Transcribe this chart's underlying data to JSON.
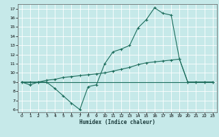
{
  "title": "",
  "xlabel": "Humidex (Indice chaleur)",
  "xlim": [
    -0.5,
    23.5
  ],
  "ylim": [
    5.7,
    17.5
  ],
  "yticks": [
    6,
    7,
    8,
    9,
    10,
    11,
    12,
    13,
    14,
    15,
    16,
    17
  ],
  "xticks": [
    0,
    1,
    2,
    3,
    4,
    5,
    6,
    7,
    8,
    9,
    10,
    11,
    12,
    13,
    14,
    15,
    16,
    17,
    18,
    19,
    20,
    21,
    22,
    23
  ],
  "bg_color": "#c6e9e9",
  "line_color": "#1a6b5a",
  "grid_color": "#ffffff",
  "line1_y": [
    9.0,
    8.7,
    9.0,
    9.0,
    8.3,
    7.5,
    6.7,
    6.0,
    8.5,
    8.7,
    11.0,
    12.3,
    12.6,
    13.0,
    14.9,
    15.8,
    17.1,
    16.5,
    16.3,
    11.5,
    9.0,
    9.0,
    9.0,
    9.0
  ],
  "line2_y": [
    9.0,
    9.0,
    9.0,
    9.0,
    9.0,
    9.0,
    9.0,
    9.0,
    9.0,
    9.0,
    9.0,
    9.0,
    9.0,
    9.0,
    9.0,
    9.0,
    9.0,
    9.0,
    9.0,
    9.0,
    9.0,
    9.0,
    9.0,
    9.0
  ],
  "line3_y": [
    9.0,
    9.0,
    9.0,
    9.2,
    9.3,
    9.5,
    9.6,
    9.7,
    9.8,
    9.9,
    10.0,
    10.2,
    10.4,
    10.6,
    10.9,
    11.1,
    11.2,
    11.3,
    11.4,
    11.5,
    9.0,
    9.0,
    9.0,
    9.0
  ]
}
